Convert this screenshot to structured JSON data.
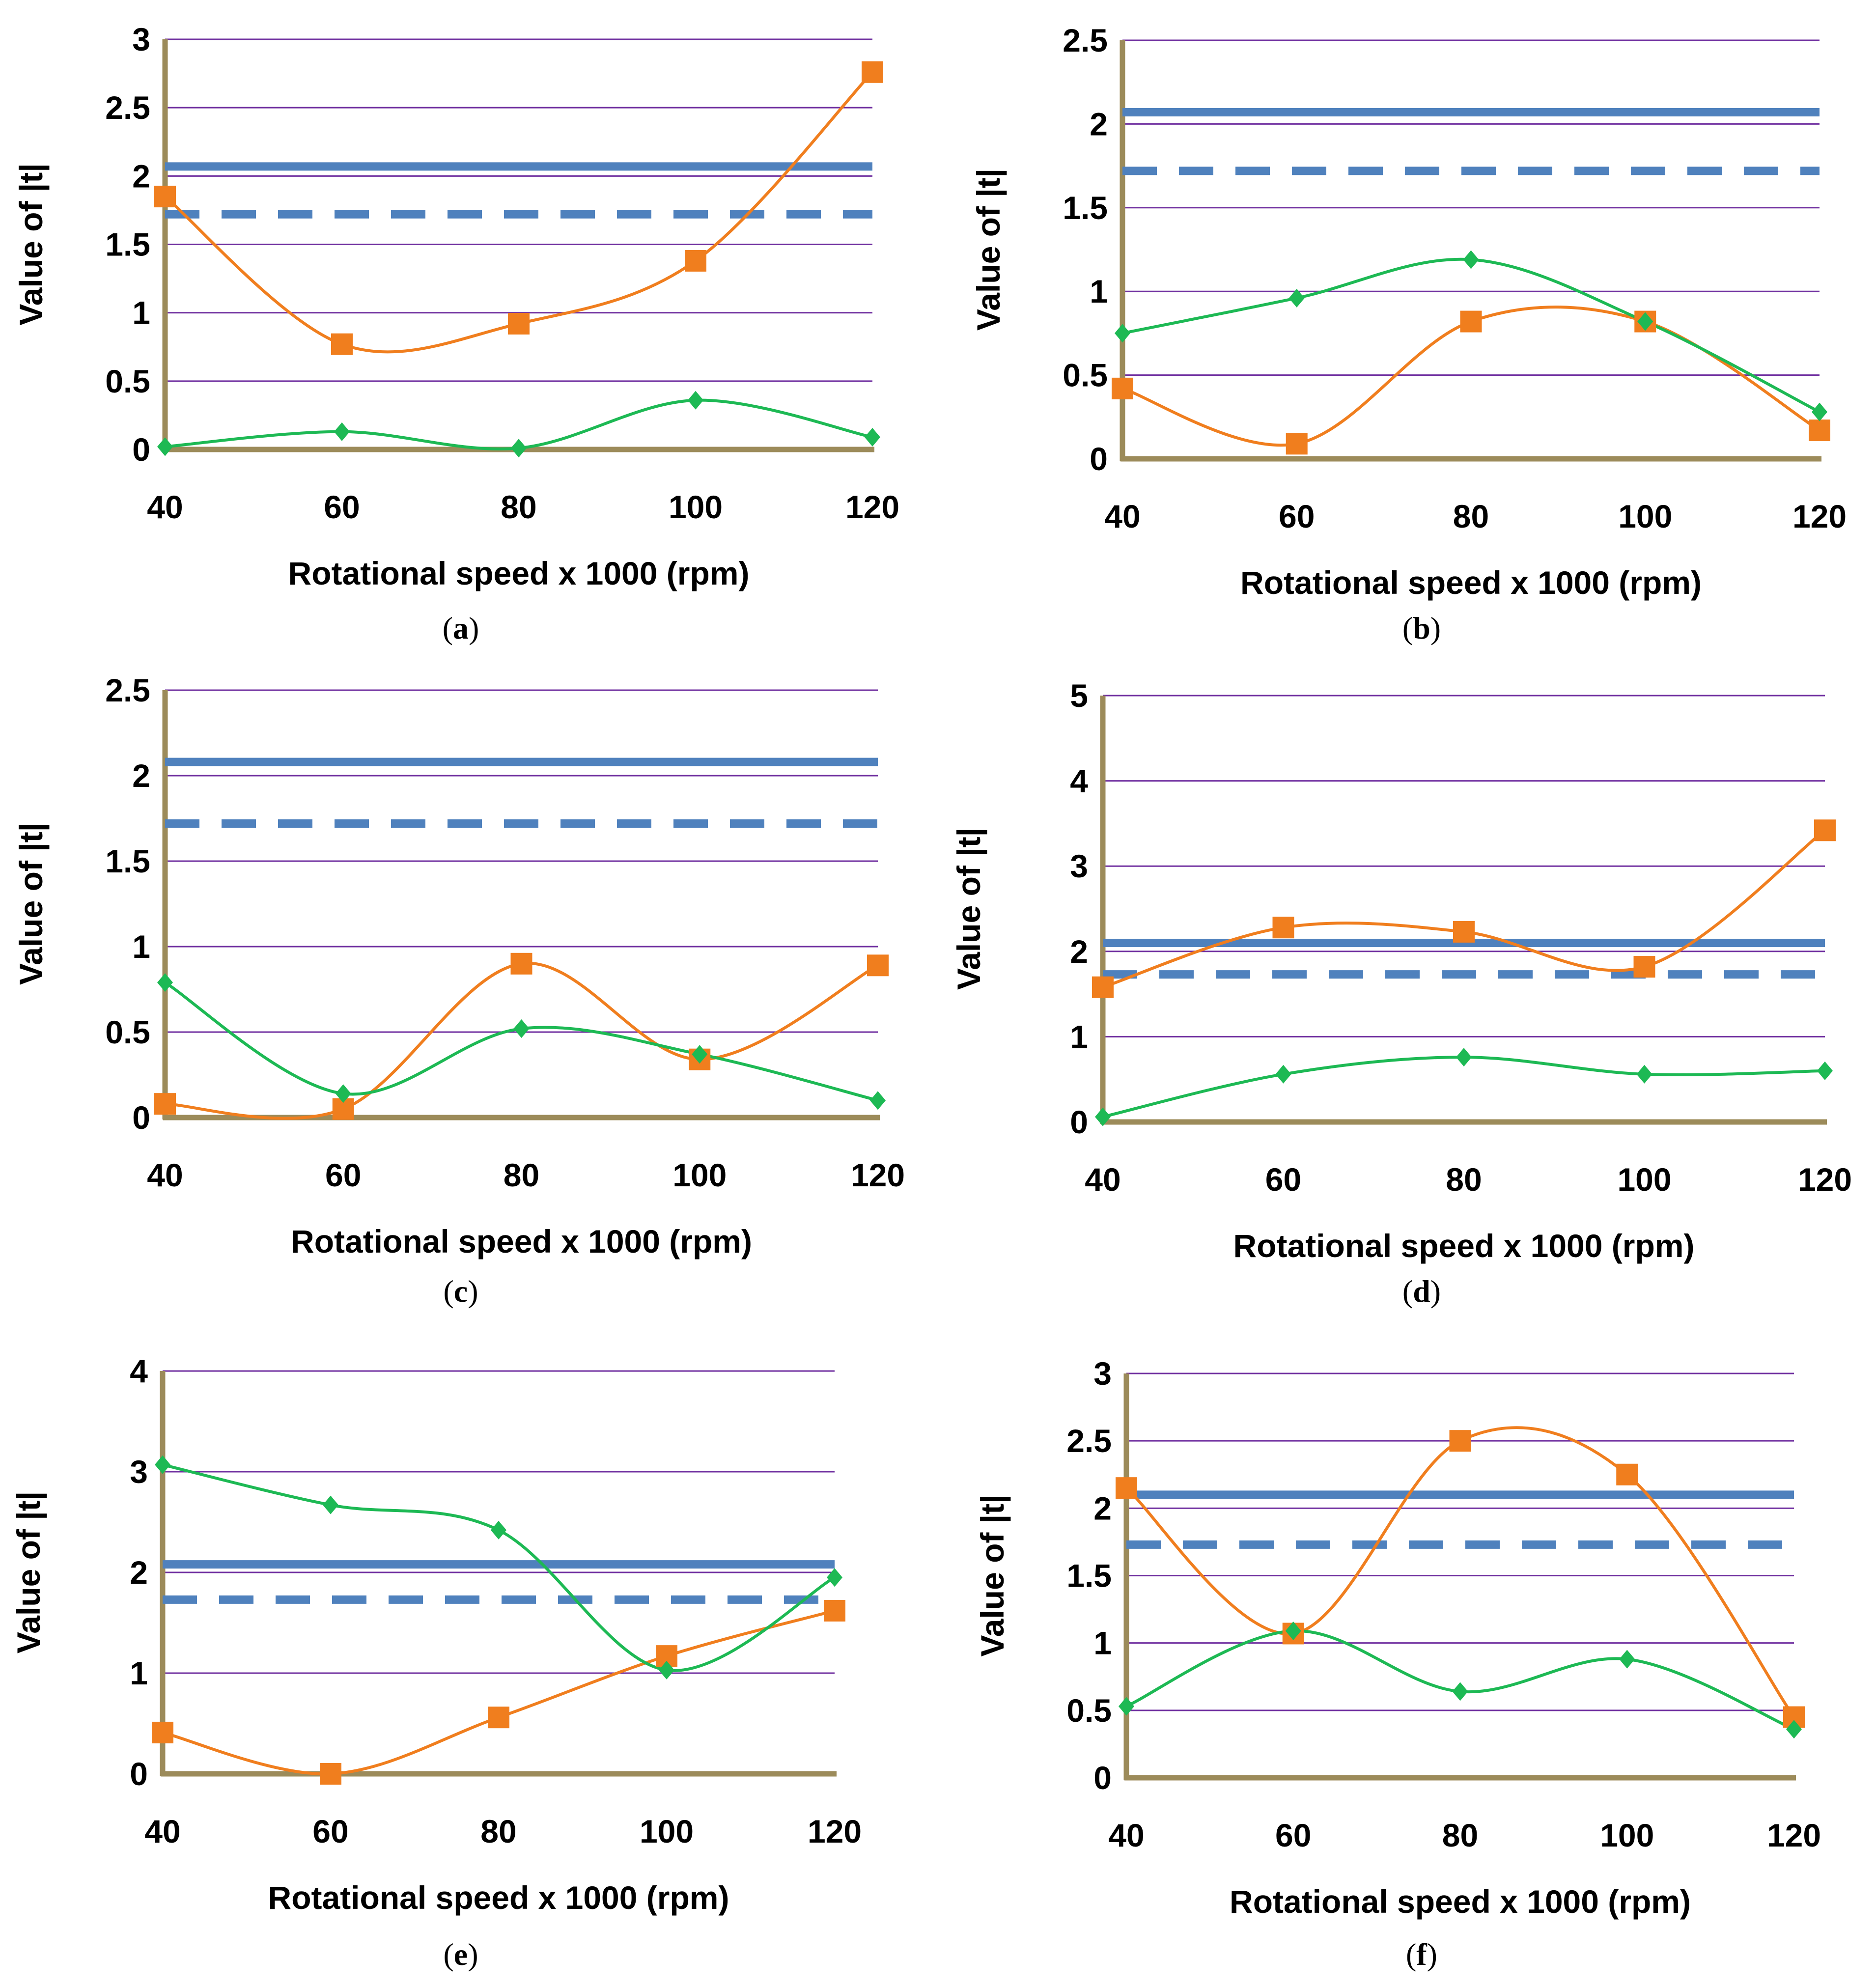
{
  "colors": {
    "grid": "#7030a0",
    "axis": "#9c8b5a",
    "critical_two_sided": "#4f81bd",
    "critical_one_sided": "#4f81bd",
    "series_orange": "#f07e1e",
    "series_green": "#1db954"
  },
  "chart_data": [
    {
      "type": "line",
      "caption": "a",
      "xlabel": "Rotational speed x 1000 (rpm)",
      "ylabel": "Value of |t|",
      "x": [
        40,
        60,
        80,
        100,
        120
      ],
      "x_tick_labels": [
        "40",
        "60",
        "80",
        "100",
        "120"
      ],
      "ylim": [
        0,
        3
      ],
      "y_tick_labels": [
        "0",
        "0.5",
        "1",
        "1.5",
        "2",
        "2.5",
        "3"
      ],
      "reference_lines": [
        {
          "name": "critical-solid",
          "value": 2.07,
          "style": "solid"
        },
        {
          "name": "critical-dashed",
          "value": 1.72,
          "style": "dashed"
        }
      ],
      "series": [
        {
          "name": "orange",
          "marker": "square",
          "values": [
            1.85,
            0.77,
            0.92,
            1.38,
            2.76
          ]
        },
        {
          "name": "green",
          "marker": "diamond",
          "values": [
            0.02,
            0.13,
            0.01,
            0.36,
            0.09
          ]
        }
      ]
    },
    {
      "type": "line",
      "caption": "b",
      "xlabel": "Rotational speed x 1000 (rpm)",
      "ylabel": "Value of |t|",
      "x": [
        40,
        60,
        80,
        100,
        120
      ],
      "x_tick_labels": [
        "40",
        "60",
        "80",
        "100",
        "120"
      ],
      "ylim": [
        0,
        2.5
      ],
      "y_tick_labels": [
        "0",
        "0.5",
        "1",
        "1.5",
        "2",
        "2.5"
      ],
      "reference_lines": [
        {
          "name": "critical-solid",
          "value": 2.07,
          "style": "solid"
        },
        {
          "name": "critical-dashed",
          "value": 1.72,
          "style": "dashed"
        }
      ],
      "series": [
        {
          "name": "orange",
          "marker": "square",
          "values": [
            0.42,
            0.09,
            0.82,
            0.82,
            0.17
          ]
        },
        {
          "name": "green",
          "marker": "diamond",
          "values": [
            0.75,
            0.96,
            1.19,
            0.82,
            0.28
          ]
        }
      ]
    },
    {
      "type": "line",
      "caption": "c",
      "xlabel": "Rotational speed x 1000 (rpm)",
      "ylabel": "Value of |t|",
      "x": [
        40,
        60,
        80,
        100,
        120
      ],
      "x_tick_labels": [
        "40",
        "60",
        "80",
        "100",
        "120"
      ],
      "ylim": [
        0,
        2.5
      ],
      "y_tick_labels": [
        "0",
        "0.5",
        "1",
        "1.5",
        "2",
        "2.5"
      ],
      "reference_lines": [
        {
          "name": "critical-solid",
          "value": 2.08,
          "style": "solid"
        },
        {
          "name": "critical-dashed",
          "value": 1.72,
          "style": "dashed"
        }
      ],
      "series": [
        {
          "name": "orange",
          "marker": "square",
          "values": [
            0.08,
            0.05,
            0.9,
            0.34,
            0.89
          ]
        },
        {
          "name": "green",
          "marker": "diamond",
          "values": [
            0.79,
            0.14,
            0.52,
            0.37,
            0.1
          ]
        }
      ]
    },
    {
      "type": "line",
      "caption": "d",
      "xlabel": "Rotational speed x 1000 (rpm)",
      "ylabel": "Value of |t|",
      "x": [
        40,
        60,
        80,
        100,
        120
      ],
      "x_tick_labels": [
        "40",
        "60",
        "80",
        "100",
        "120"
      ],
      "ylim": [
        0,
        5
      ],
      "y_tick_labels": [
        "0",
        "1",
        "2",
        "3",
        "4",
        "5"
      ],
      "reference_lines": [
        {
          "name": "critical-solid",
          "value": 2.1,
          "style": "solid"
        },
        {
          "name": "critical-dashed",
          "value": 1.73,
          "style": "dashed"
        }
      ],
      "series": [
        {
          "name": "orange",
          "marker": "square",
          "values": [
            1.58,
            2.28,
            2.23,
            1.82,
            3.42
          ]
        },
        {
          "name": "green",
          "marker": "diamond",
          "values": [
            0.06,
            0.56,
            0.76,
            0.56,
            0.6
          ]
        }
      ]
    },
    {
      "type": "line",
      "caption": "e",
      "xlabel": "Rotational speed x 1000 (rpm)",
      "ylabel": "Value of |t|",
      "x": [
        40,
        60,
        80,
        100,
        120
      ],
      "x_tick_labels": [
        "40",
        "60",
        "80",
        "100",
        "120"
      ],
      "ylim": [
        0,
        4
      ],
      "y_tick_labels": [
        "0",
        "1",
        "2",
        "3",
        "4"
      ],
      "reference_lines": [
        {
          "name": "critical-solid",
          "value": 2.08,
          "style": "solid"
        },
        {
          "name": "critical-dashed",
          "value": 1.73,
          "style": "dashed"
        }
      ],
      "series": [
        {
          "name": "orange",
          "marker": "square",
          "values": [
            0.41,
            0.0,
            0.56,
            1.17,
            1.62
          ]
        },
        {
          "name": "green",
          "marker": "diamond",
          "values": [
            3.07,
            2.67,
            2.42,
            1.03,
            1.95
          ]
        }
      ]
    },
    {
      "type": "line",
      "caption": "f",
      "xlabel": "Rotational speed x 1000 (rpm)",
      "ylabel": "Value of |t|",
      "x": [
        40,
        60,
        80,
        100,
        120
      ],
      "x_tick_labels": [
        "40",
        "60",
        "80",
        "100",
        "120"
      ],
      "ylim": [
        0,
        3
      ],
      "y_tick_labels": [
        "0",
        "0.5",
        "1",
        "1.5",
        "2",
        "2.5",
        "3"
      ],
      "reference_lines": [
        {
          "name": "critical-solid",
          "value": 2.1,
          "style": "solid"
        },
        {
          "name": "critical-dashed",
          "value": 1.73,
          "style": "dashed"
        }
      ],
      "series": [
        {
          "name": "orange",
          "marker": "square",
          "values": [
            2.15,
            1.07,
            2.5,
            2.25,
            0.45
          ]
        },
        {
          "name": "green",
          "marker": "diamond",
          "values": [
            0.53,
            1.09,
            0.64,
            0.88,
            0.36
          ]
        }
      ]
    }
  ]
}
